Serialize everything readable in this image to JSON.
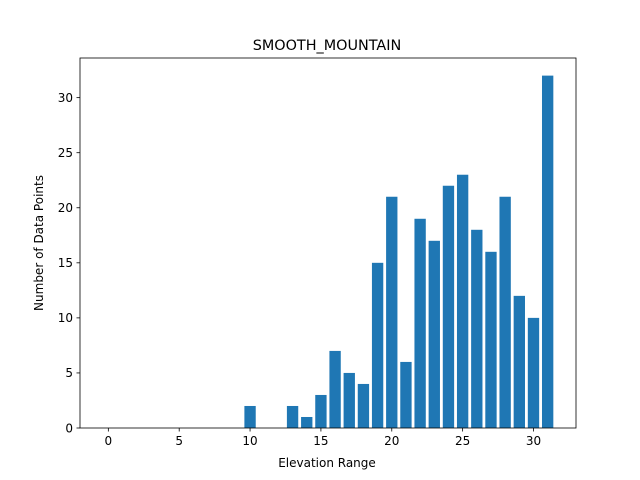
{
  "chart_data": {
    "type": "bar",
    "title": "SMOOTH_MOUNTAIN",
    "xlabel": "Elevation Range",
    "ylabel": "Number of Data Points",
    "xlim": [
      -2,
      33
    ],
    "ylim": [
      0,
      33.6
    ],
    "xticks": [
      0,
      5,
      10,
      15,
      20,
      25,
      30
    ],
    "yticks": [
      0,
      5,
      10,
      15,
      20,
      25,
      30
    ],
    "bar_color": "#1f77b4",
    "grid": false,
    "legend": "none",
    "series": [
      {
        "x": [
          10,
          13,
          14,
          15,
          16,
          17,
          18,
          19,
          20,
          21,
          22,
          23,
          24,
          25,
          26,
          27,
          28,
          29,
          30,
          31
        ],
        "values": [
          2,
          2,
          1,
          3,
          7,
          5,
          4,
          15,
          21,
          6,
          19,
          17,
          22,
          23,
          18,
          16,
          21,
          12,
          10,
          32
        ]
      }
    ]
  }
}
